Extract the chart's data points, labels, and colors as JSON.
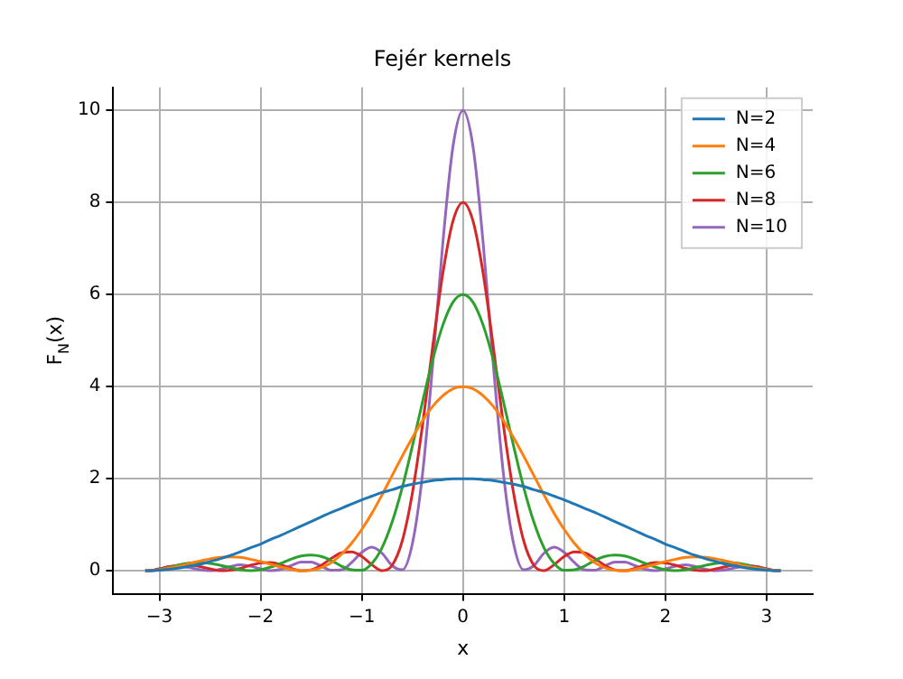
{
  "chart_data": {
    "type": "line",
    "title": "Fejér kernels",
    "xlabel": "x",
    "ylabel": "F$_{N}$(x)",
    "x": [
      -3.14,
      -3.1,
      -3.0,
      -2.9,
      -2.8,
      -2.7,
      -2.6,
      -2.5,
      -2.4,
      -2.3,
      -2.2,
      -2.1,
      -2.0,
      -1.9,
      -1.8,
      -1.7,
      -1.6,
      -1.5,
      -1.4,
      -1.3,
      -1.2,
      -1.1,
      -1.0,
      -0.9,
      -0.8,
      -0.7,
      -0.6,
      -0.5,
      -0.4,
      -0.3,
      -0.2,
      -0.1,
      0,
      0.1,
      0.2,
      0.3,
      0.4,
      0.5,
      0.6,
      0.7,
      0.8,
      0.9,
      1.0,
      1.1,
      1.2,
      1.3,
      1.4,
      1.5,
      1.6,
      1.7,
      1.8,
      1.9,
      2.0,
      2.1,
      2.2,
      2.3,
      2.4,
      2.5,
      2.6,
      2.7,
      2.8,
      2.9,
      3.0,
      3.1,
      3.14
    ],
    "series": [
      {
        "name": "N=2",
        "color": "#1f77b4",
        "values": [
          0,
          0,
          0.01,
          0.03,
          0.06,
          0.1,
          0.14,
          0.2,
          0.26,
          0.33,
          0.41,
          0.5,
          0.58,
          0.68,
          0.77,
          0.87,
          0.97,
          1.07,
          1.17,
          1.27,
          1.36,
          1.45,
          1.54,
          1.62,
          1.7,
          1.76,
          1.83,
          1.88,
          1.92,
          1.96,
          1.98,
          2,
          2,
          2,
          1.98,
          1.96,
          1.92,
          1.88,
          1.83,
          1.76,
          1.7,
          1.62,
          1.54,
          1.45,
          1.36,
          1.27,
          1.17,
          1.07,
          0.97,
          0.87,
          0.77,
          0.68,
          0.58,
          0.5,
          0.41,
          0.33,
          0.26,
          0.2,
          0.14,
          0.1,
          0.06,
          0.03,
          0.01,
          0,
          0
        ]
      },
      {
        "name": "N=4",
        "color": "#ff7f0e",
        "values": [
          0,
          0,
          0.02,
          0.06,
          0.1,
          0.16,
          0.21,
          0.26,
          0.29,
          0.3,
          0.29,
          0.25,
          0.2,
          0.14,
          0.08,
          0.03,
          0,
          0.01,
          0.07,
          0.18,
          0.36,
          0.6,
          0.9,
          1.25,
          1.65,
          2.07,
          2.49,
          2.89,
          3.26,
          3.57,
          3.8,
          3.95,
          4,
          3.95,
          3.8,
          3.57,
          3.26,
          2.89,
          2.49,
          2.07,
          1.65,
          1.25,
          0.9,
          0.6,
          0.36,
          0.18,
          0.07,
          0.01,
          0,
          0.03,
          0.08,
          0.14,
          0.2,
          0.25,
          0.29,
          0.3,
          0.29,
          0.26,
          0.21,
          0.16,
          0.1,
          0.06,
          0.02,
          0,
          0
        ]
      },
      {
        "name": "N=6",
        "color": "#2ca02c",
        "values": [
          null,
          null,
          0.03,
          0.07,
          0.13,
          0.17,
          0.18,
          0.16,
          0.12,
          0.07,
          0.02,
          0,
          0.02,
          0.08,
          0.16,
          0.25,
          0.32,
          0.34,
          0.31,
          0.22,
          0.1,
          0.02,
          0.01,
          0.16,
          0.5,
          1.06,
          1.81,
          2.71,
          3.67,
          4.58,
          5.33,
          5.83,
          6,
          5.83,
          5.33,
          4.58,
          3.67,
          2.71,
          1.81,
          1.06,
          0.5,
          0.16,
          0.01,
          0.02,
          0.1,
          0.22,
          0.31,
          0.34,
          0.32,
          0.25,
          0.16,
          0.08,
          0.02,
          0,
          0.02,
          0.07,
          0.12,
          0.16,
          0.18,
          0.17,
          0.13,
          0.07,
          0.03,
          null,
          null
        ]
      },
      {
        "name": "N=8",
        "color": "#d62728",
        "values": [
          0,
          0,
          0.04,
          0.09,
          0.12,
          0.13,
          0.09,
          0.04,
          0,
          0.01,
          0.05,
          0.12,
          0.17,
          0.18,
          0.13,
          0.05,
          0,
          0.02,
          0.12,
          0.27,
          0.39,
          0.41,
          0.31,
          0.13,
          0,
          0.12,
          0.65,
          1.69,
          3.16,
          4.86,
          6.45,
          7.59,
          8,
          7.59,
          6.45,
          4.86,
          3.16,
          1.69,
          0.65,
          0.12,
          0,
          0.13,
          0.31,
          0.41,
          0.39,
          0.27,
          0.12,
          0.02,
          0,
          0.05,
          0.13,
          0.18,
          0.17,
          0.12,
          0.05,
          0.01,
          0,
          0.04,
          0.09,
          0.13,
          0.12,
          0.09,
          0.04,
          0,
          0
        ]
      },
      {
        "name": "N=10",
        "color": "#9467bd",
        "values": [
          0,
          0,
          0.04,
          0.09,
          0.1,
          0.07,
          0.02,
          0,
          0.03,
          0.09,
          0.13,
          0.1,
          0.04,
          0,
          0.03,
          0.11,
          0.19,
          0.19,
          0.1,
          0.01,
          0.02,
          0.18,
          0.4,
          0.51,
          0.38,
          0.11,
          0.02,
          0.59,
          2.1,
          4.46,
          7.1,
          9.2,
          10,
          9.2,
          7.1,
          4.46,
          2.1,
          0.59,
          0.02,
          0.11,
          0.38,
          0.51,
          0.4,
          0.18,
          0.02,
          0.01,
          0.1,
          0.19,
          0.19,
          0.11,
          0.03,
          0,
          0.04,
          0.1,
          0.13,
          0.09,
          0.03,
          0,
          0.02,
          0.07,
          0.1,
          0.09,
          0.04,
          0,
          0
        ]
      }
    ],
    "xlim": [
      -3.456,
      3.456
    ],
    "xticks": [
      {
        "value": -3,
        "label": "−3"
      },
      {
        "value": -2,
        "label": "−2"
      },
      {
        "value": -1,
        "label": "−1"
      },
      0,
      1,
      2,
      3
    ],
    "ylim": [
      -0.5,
      10.5
    ],
    "yticks": [
      0,
      2,
      4,
      6,
      8,
      10
    ],
    "grid": true,
    "legend": "top right",
    "line_style": "solid"
  }
}
